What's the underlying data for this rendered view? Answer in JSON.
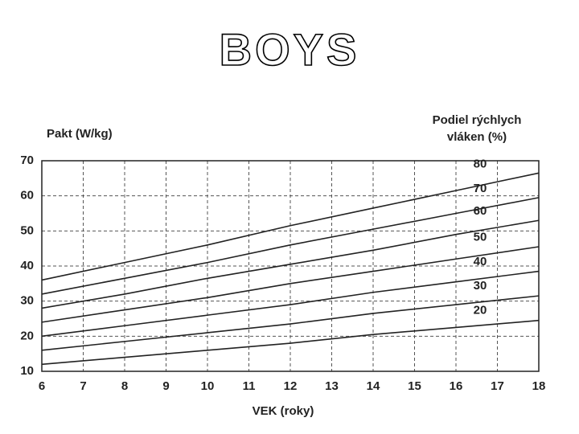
{
  "chart_data": {
    "type": "line",
    "title": "BOYS",
    "y_label": "Pakt (W/kg)",
    "x_label": "VEK (roky)",
    "legend_title": [
      "Podiel rýchlych",
      "vláken (%)"
    ],
    "x": [
      6,
      8,
      10,
      12,
      14,
      16,
      18
    ],
    "series": [
      {
        "name": "80",
        "color": "#222222",
        "values": [
          36,
          41,
          46,
          51.5,
          56.5,
          61.5,
          66.5
        ]
      },
      {
        "name": "70",
        "color": "#222222",
        "values": [
          32,
          36.5,
          41,
          46,
          50.5,
          55,
          59.5
        ]
      },
      {
        "name": "60",
        "color": "#222222",
        "values": [
          28,
          32,
          36.5,
          40.5,
          44.5,
          49,
          53
        ]
      },
      {
        "name": "50",
        "color": "#222222",
        "values": [
          24,
          27.5,
          31,
          35,
          38.5,
          42,
          45.5
        ]
      },
      {
        "name": "40",
        "color": "#222222",
        "values": [
          20,
          23,
          26,
          29,
          32.5,
          35.5,
          38.5
        ]
      },
      {
        "name": "30",
        "color": "#222222",
        "values": [
          16,
          18.5,
          21,
          23.5,
          26.5,
          29,
          31.5
        ]
      },
      {
        "name": "20",
        "color": "#222222",
        "values": [
          12,
          14,
          16,
          18,
          20.5,
          22.5,
          24.5
        ]
      }
    ],
    "xlim": [
      6,
      18
    ],
    "xticks": [
      6,
      7,
      8,
      9,
      10,
      11,
      12,
      13,
      14,
      15,
      16,
      17,
      18
    ],
    "ylim": [
      10,
      70
    ],
    "yticks": [
      10,
      20,
      30,
      40,
      50,
      60,
      70
    ],
    "grid": true
  }
}
